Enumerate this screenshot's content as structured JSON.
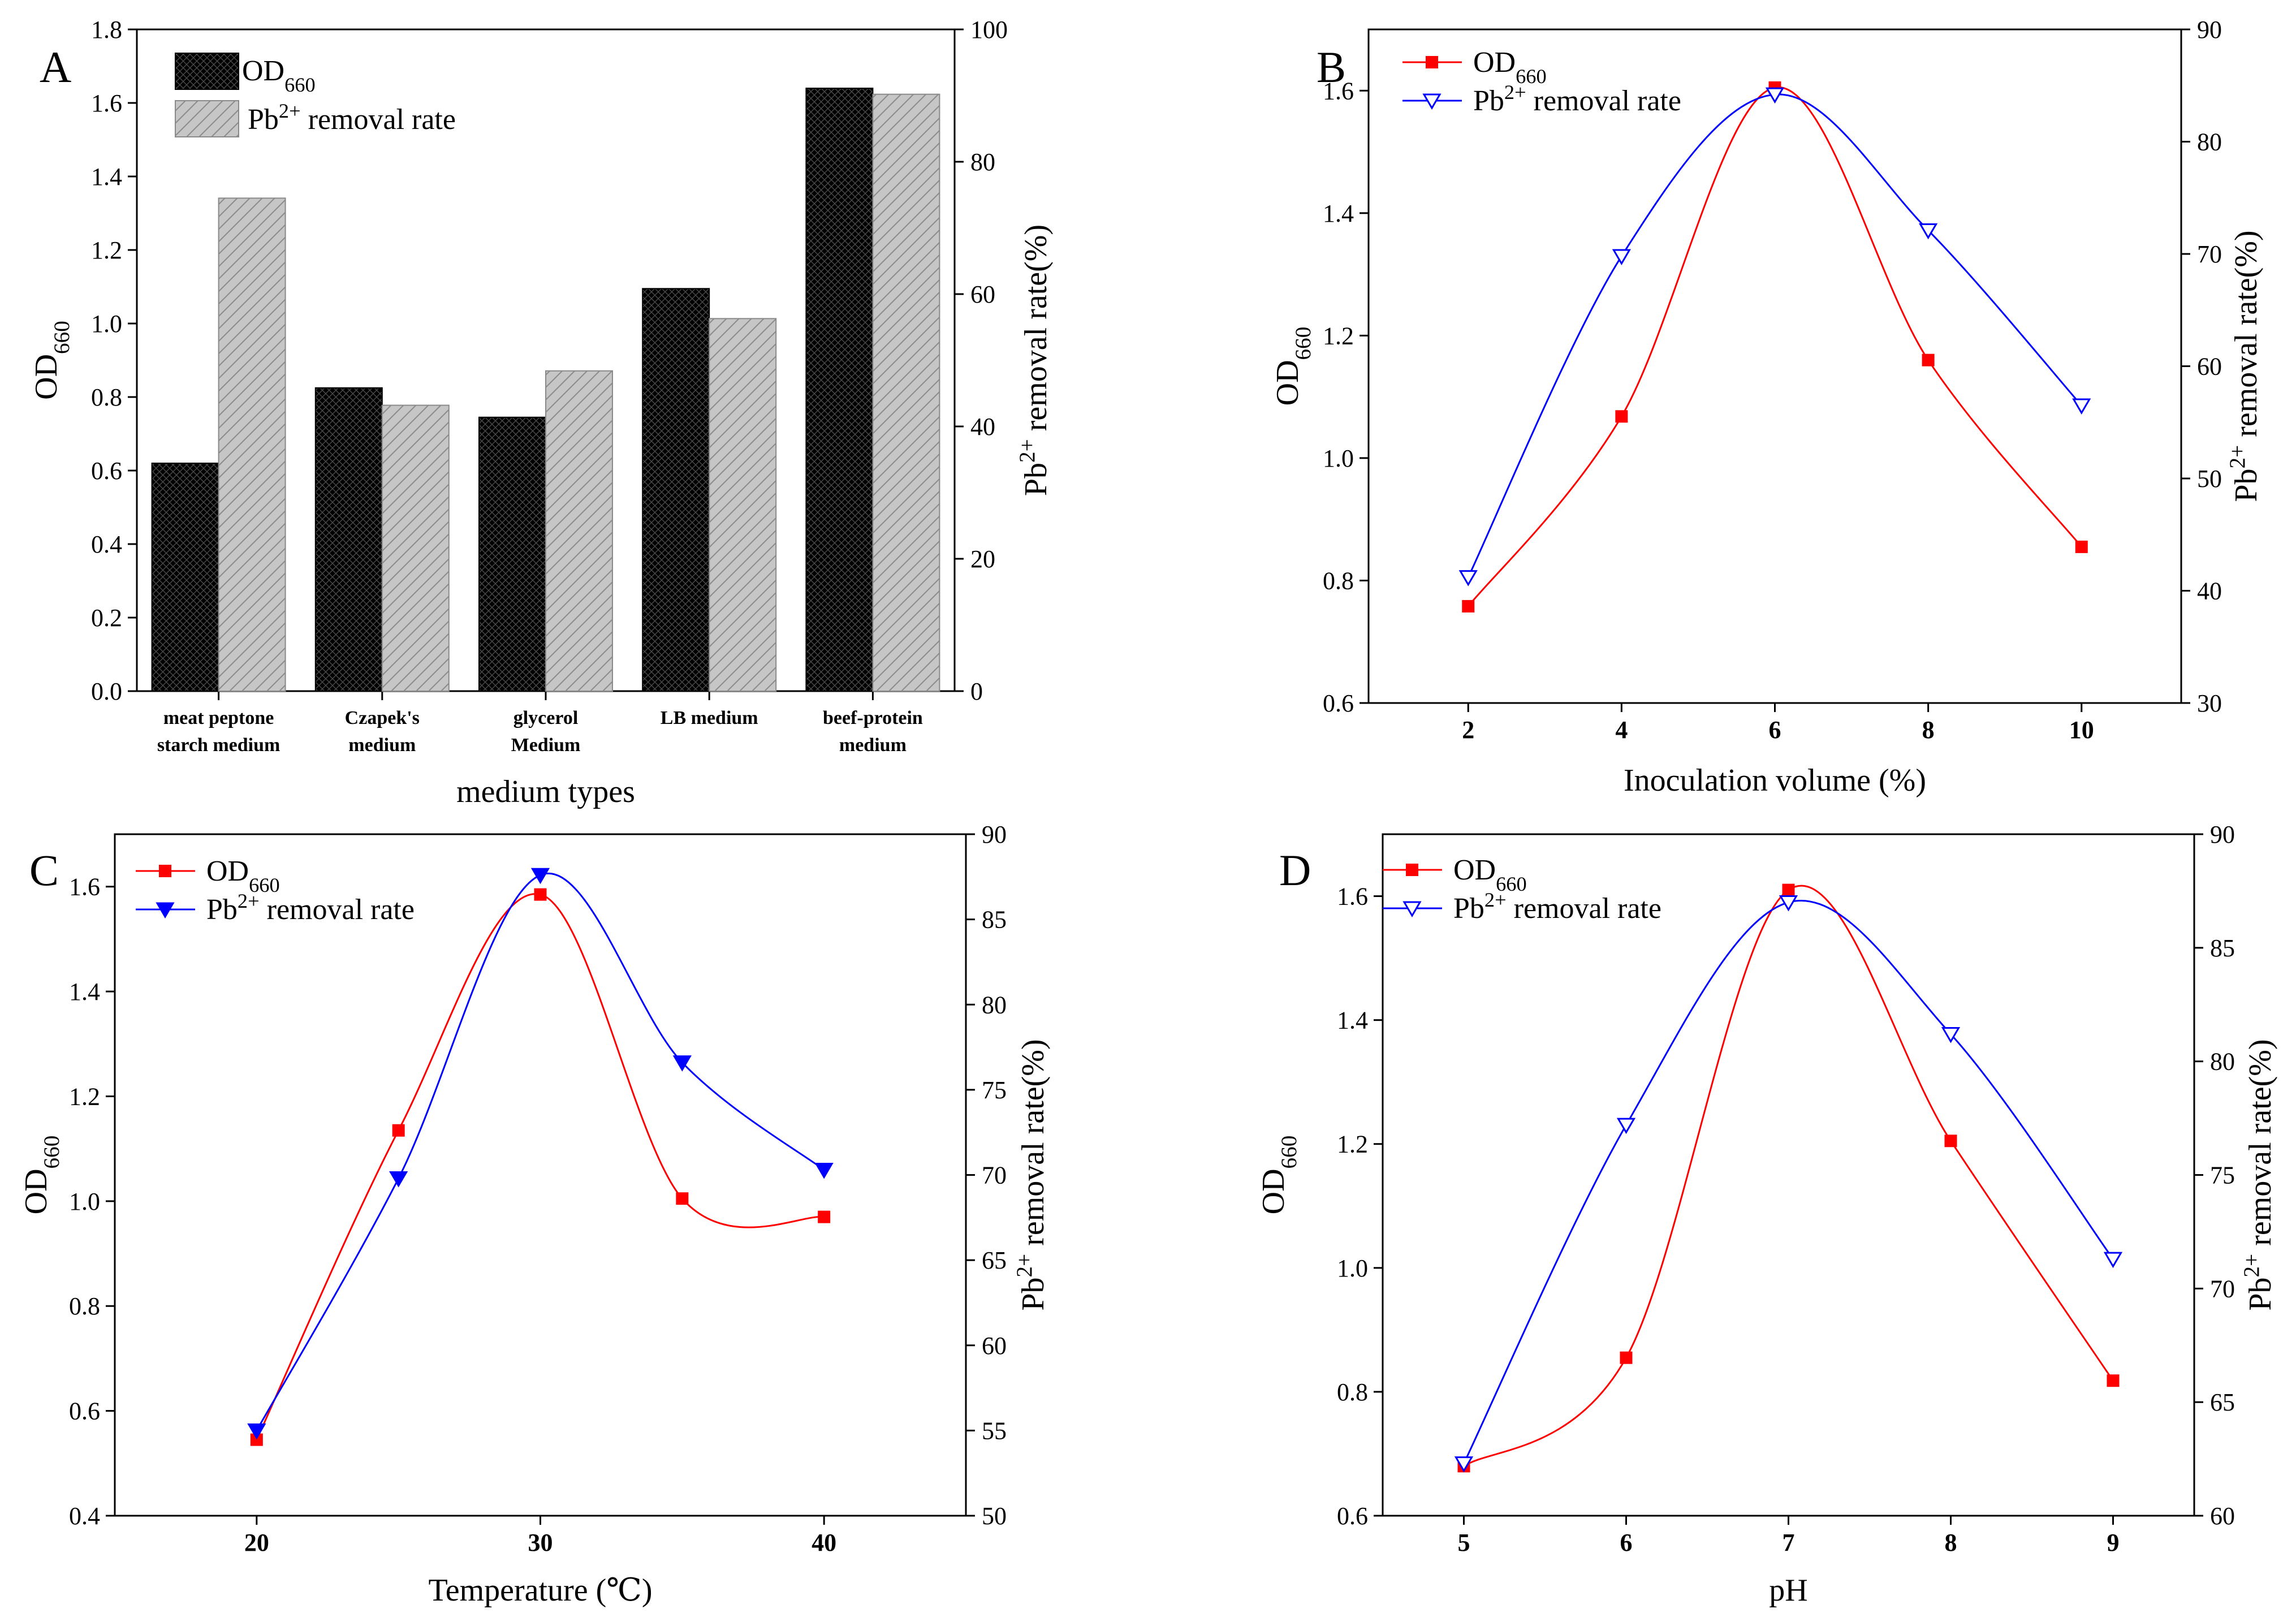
{
  "chart_data": [
    {
      "panel": "A",
      "type": "bar",
      "title": "",
      "xlabel": "medium types",
      "ylabel": "OD660",
      "y2label": "Pb2+ removal rate(%)",
      "categories": [
        [
          "meat peptone",
          "starch medium"
        ],
        [
          "Czapek's",
          "medium"
        ],
        [
          "glycerol",
          "Medium"
        ],
        [
          "LB medium"
        ],
        [
          "beef-protein",
          "medium"
        ]
      ],
      "ylim": [
        0,
        1.8
      ],
      "y2lim": [
        0,
        100
      ],
      "yticks": [
        "0.0",
        "0.2",
        "0.4",
        "0.6",
        "0.8",
        "1.0",
        "1.2",
        "1.4",
        "1.6",
        "1.8"
      ],
      "y2ticks": [
        "0",
        "20",
        "40",
        "60",
        "80",
        "100"
      ],
      "series": [
        {
          "name": "OD660",
          "axis": "left",
          "color": "#000000",
          "values": [
            0.62,
            0.825,
            0.745,
            1.095,
            1.64
          ]
        },
        {
          "name": "Pb2+ removal rate",
          "axis": "right",
          "color": "#c6c6c6",
          "values": [
            74.5,
            43.2,
            48.4,
            56.3,
            90.2
          ]
        }
      ],
      "legend": "top-left"
    },
    {
      "panel": "B",
      "type": "line",
      "xlabel": "Inoculation volume (%)",
      "ylabel": "OD660",
      "y2label": "Pb2+ removal rate(%)",
      "x": [
        2,
        4,
        6,
        8,
        10
      ],
      "xlim": [
        0.7,
        11.3
      ],
      "ylim": [
        0.6,
        1.7
      ],
      "y2lim": [
        30,
        90
      ],
      "xticks": [
        "2",
        "4",
        "6",
        "8",
        "10"
      ],
      "yticks": [
        "0.6",
        "0.8",
        "1.0",
        "1.2",
        "1.4",
        "1.6"
      ],
      "y2ticks": [
        "30",
        "40",
        "50",
        "60",
        "70",
        "80",
        "90"
      ],
      "series": [
        {
          "name": "OD660",
          "axis": "left",
          "color": "#ff0000",
          "marker": "square",
          "values": [
            0.758,
            1.068,
            1.605,
            1.16,
            0.855
          ]
        },
        {
          "name": "Pb2+ removal rate",
          "axis": "right",
          "color": "#0000ff",
          "marker": "open-triangle-down",
          "values": [
            41.2,
            69.8,
            84.2,
            72.1,
            56.5
          ]
        }
      ],
      "legend": "top-left"
    },
    {
      "panel": "C",
      "type": "line",
      "xlabel": "Temperature (℃)",
      "ylabel": "OD660",
      "y2label": "Pb2+ removal rate(%)",
      "x": [
        20,
        25,
        30,
        35,
        40
      ],
      "xlim": [
        15,
        45
      ],
      "ylim": [
        0.4,
        1.7
      ],
      "y2lim": [
        50,
        90
      ],
      "xticks": [
        "20",
        "30",
        "40"
      ],
      "yticks": [
        "0.4",
        "0.6",
        "0.8",
        "1.0",
        "1.2",
        "1.4",
        "1.6"
      ],
      "y2ticks": [
        "50",
        "55",
        "60",
        "65",
        "70",
        "75",
        "80",
        "85",
        "90"
      ],
      "series": [
        {
          "name": "OD660",
          "axis": "left",
          "color": "#ff0000",
          "marker": "square",
          "values": [
            0.545,
            1.135,
            1.585,
            1.005,
            0.97
          ]
        },
        {
          "name": "Pb2+ removal rate",
          "axis": "right",
          "color": "#0000ff",
          "marker": "filled-triangle-down",
          "values": [
            55.0,
            69.8,
            87.6,
            76.6,
            70.3
          ]
        }
      ],
      "legend": "top-left"
    },
    {
      "panel": "D",
      "type": "line",
      "xlabel": "pH",
      "ylabel": "OD660",
      "y2label": "Pb2+ removal rate(%)",
      "x": [
        5,
        6,
        7,
        8,
        9
      ],
      "xlim": [
        4.5,
        9.5
      ],
      "ylim": [
        0.6,
        1.7
      ],
      "y2lim": [
        60,
        90
      ],
      "xticks": [
        "5",
        "6",
        "7",
        "8",
        "9"
      ],
      "yticks": [
        "0.6",
        "0.8",
        "1.0",
        "1.2",
        "1.4",
        "1.6"
      ],
      "y2ticks": [
        "60",
        "65",
        "70",
        "75",
        "80",
        "85",
        "90"
      ],
      "series": [
        {
          "name": "OD660",
          "axis": "left",
          "color": "#ff0000",
          "marker": "square",
          "values": [
            0.68,
            0.855,
            1.61,
            1.205,
            0.818
          ]
        },
        {
          "name": "Pb2+ removal rate",
          "axis": "right",
          "color": "#0000ff",
          "marker": "open-triangle-down",
          "values": [
            62.3,
            77.2,
            87.0,
            81.2,
            71.3
          ]
        }
      ],
      "legend": "top-left"
    }
  ]
}
